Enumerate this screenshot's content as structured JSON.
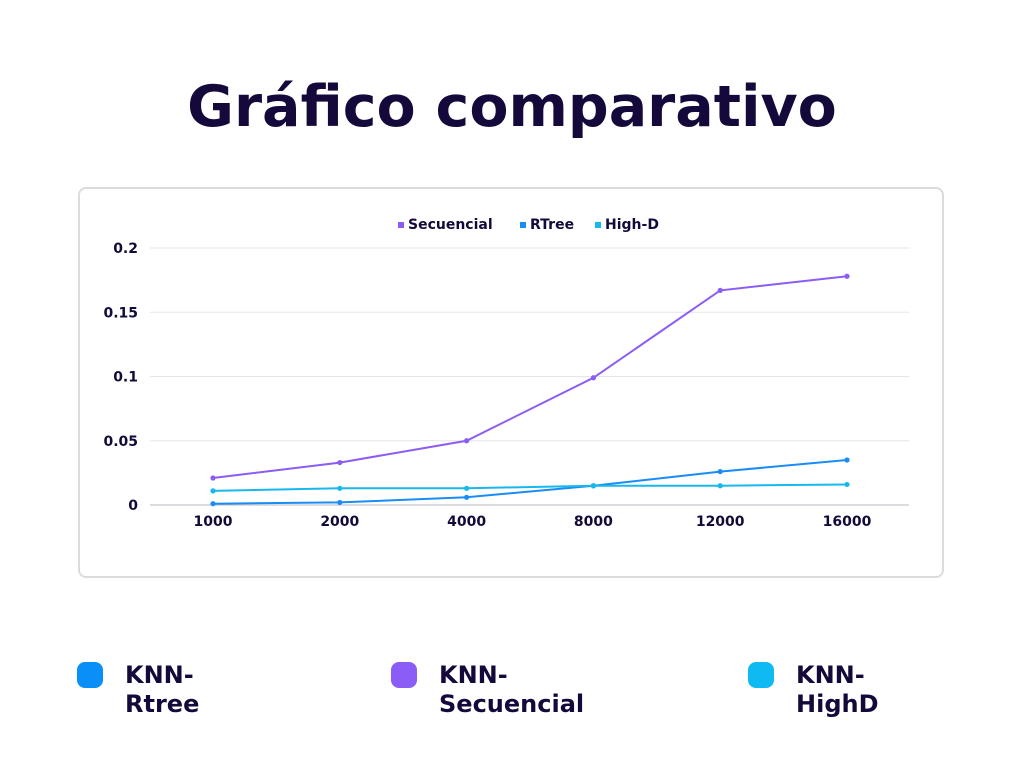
{
  "title": "Gráfico comparativo",
  "chart_data": {
    "type": "line",
    "categories": [
      "1000",
      "2000",
      "4000",
      "8000",
      "12000",
      "16000"
    ],
    "series": [
      {
        "name": "Secuencial",
        "color": "#8b5cf6",
        "values": [
          0.021,
          0.033,
          0.05,
          0.099,
          0.167,
          0.178
        ]
      },
      {
        "name": "RTree",
        "color": "#1a8cf5",
        "values": [
          0.001,
          0.002,
          0.006,
          0.015,
          0.026,
          0.035
        ]
      },
      {
        "name": "High-D",
        "color": "#16b8ee",
        "values": [
          0.011,
          0.013,
          0.013,
          0.015,
          0.015,
          0.016
        ]
      }
    ],
    "yticks": [
      "0",
      "0.05",
      "0.1",
      "0.15",
      "0.2"
    ],
    "ylim": [
      0,
      0.2
    ],
    "xlabel": "",
    "ylabel": "",
    "grid": true,
    "legend_position": "top"
  },
  "legend": [
    {
      "label": "KNN-\nRtree",
      "color": "#0a8ef7"
    },
    {
      "label": "KNN-\nSecuencial",
      "color": "#8b5cf6"
    },
    {
      "label": "KNN-\nHighD",
      "color": "#0fbaf2"
    }
  ]
}
